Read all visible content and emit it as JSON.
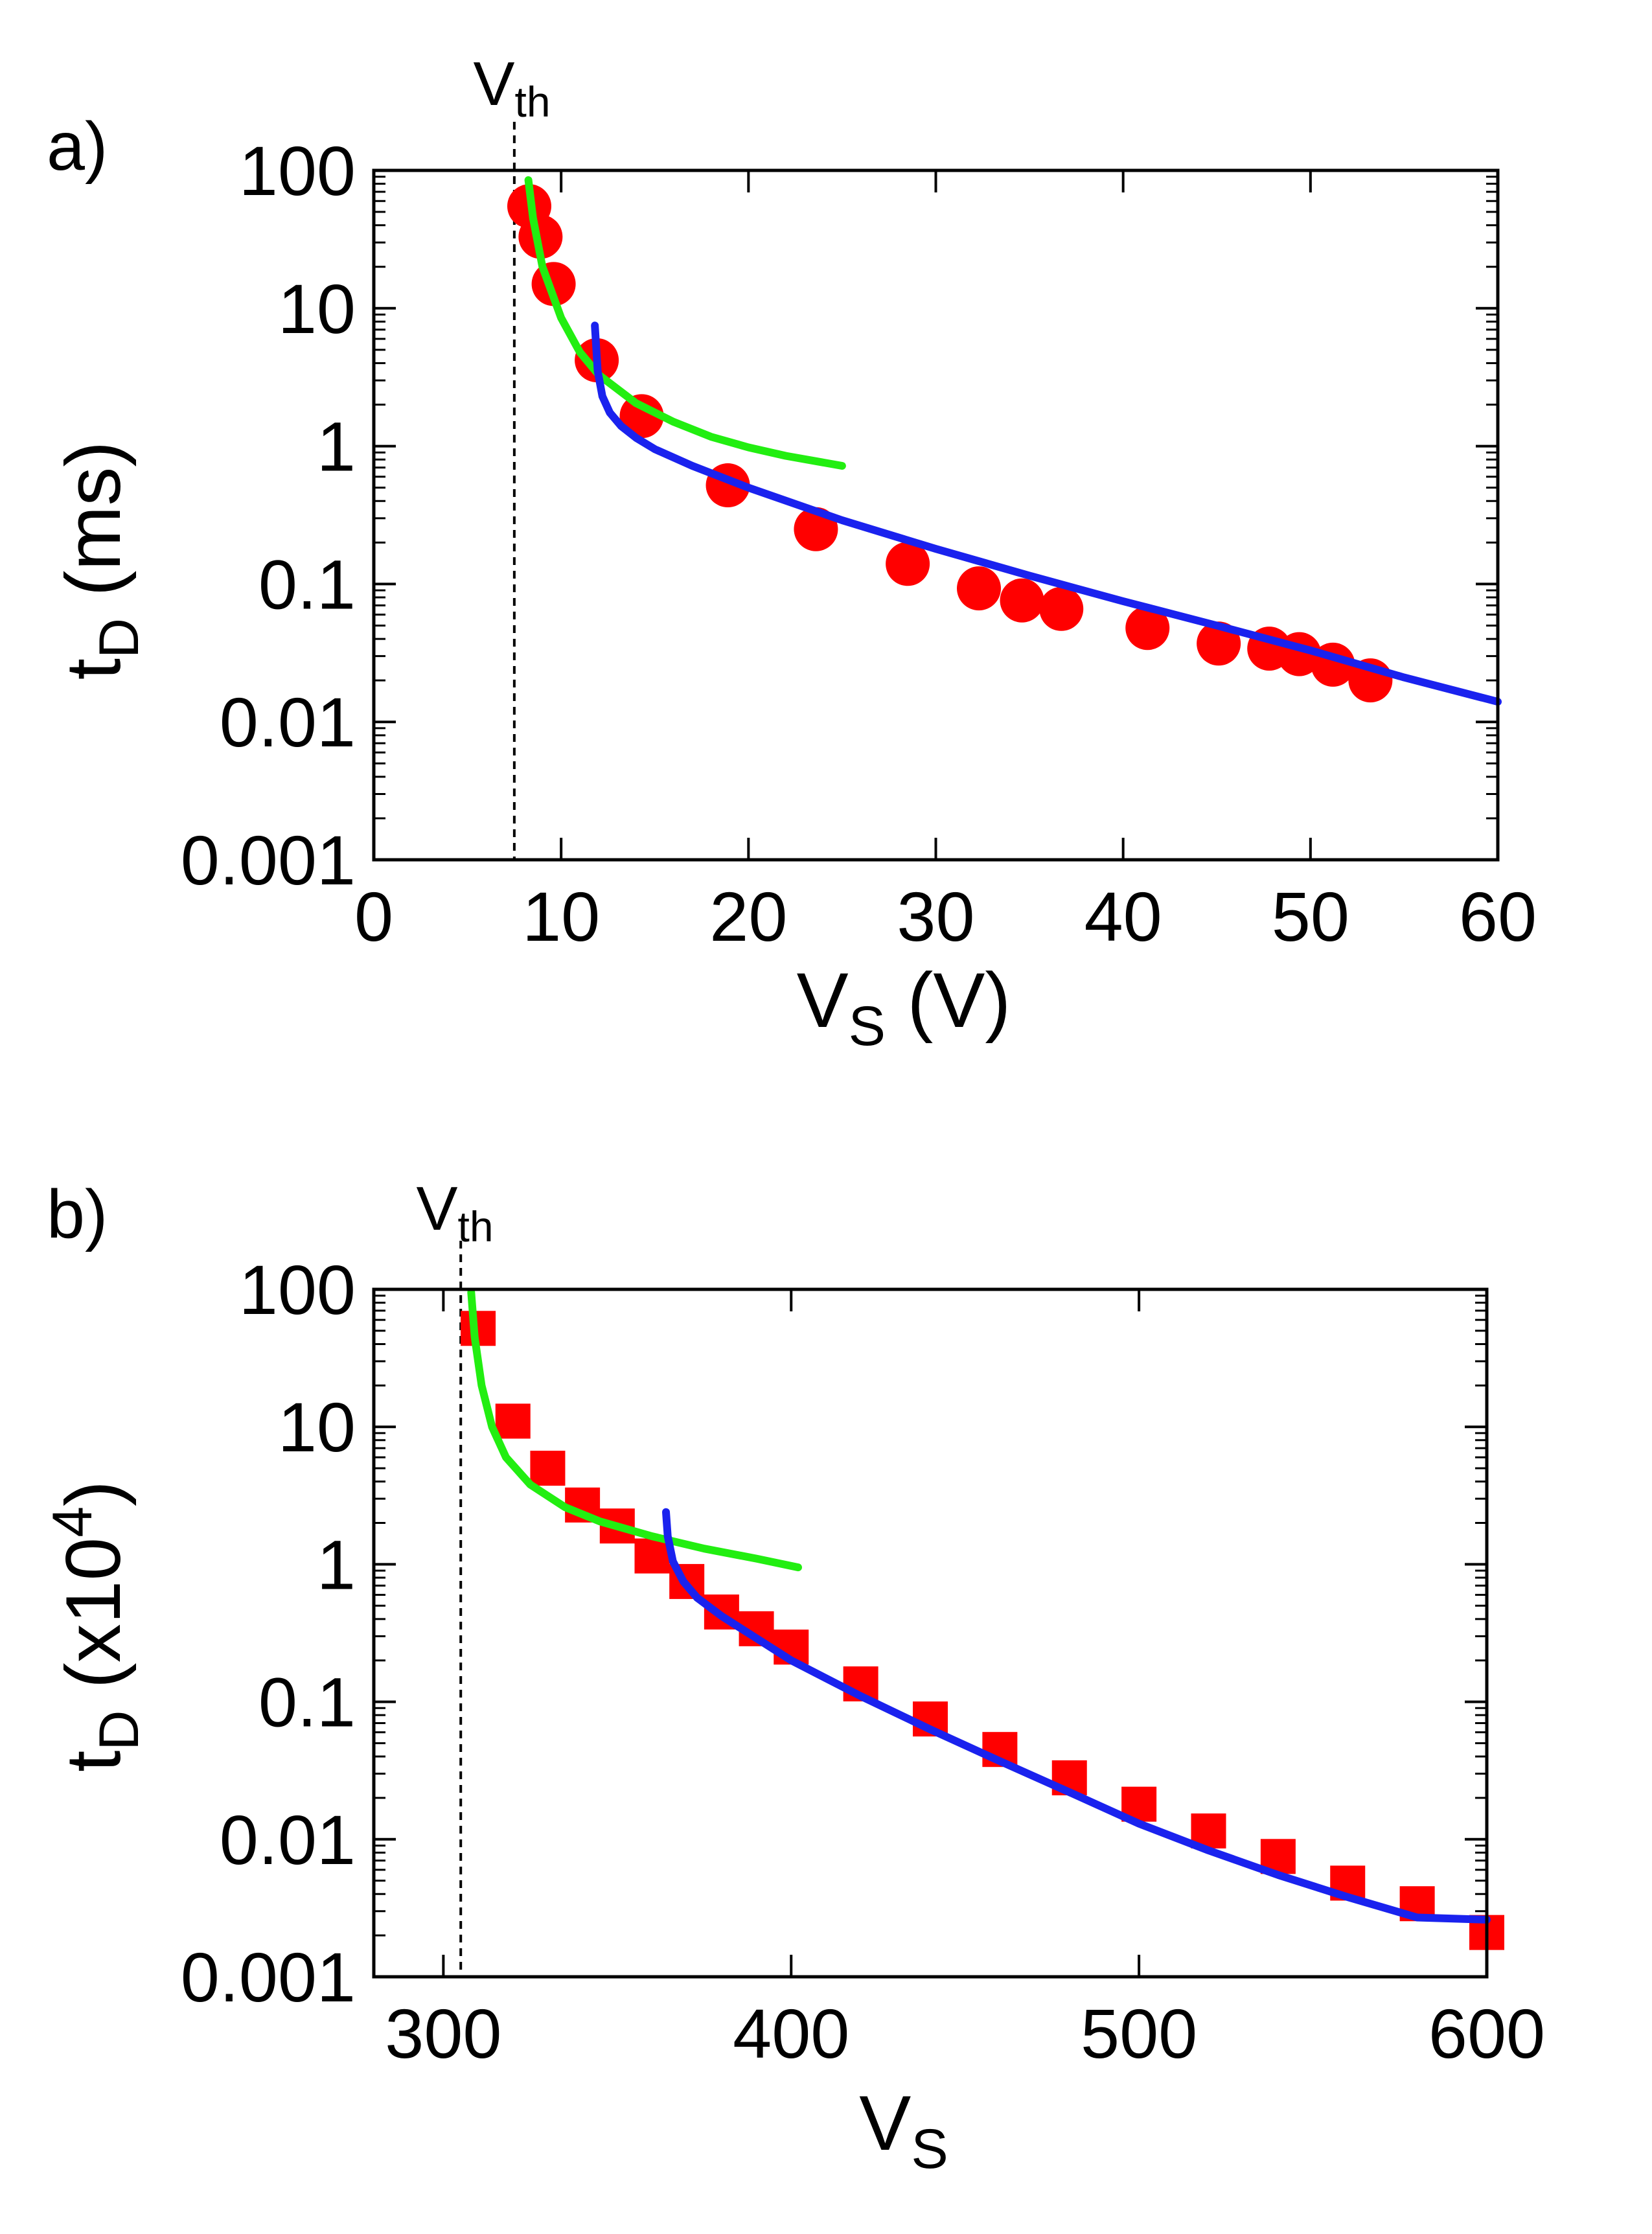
{
  "colors": {
    "points": "#ff0000",
    "green_curve": "#22ee11",
    "blue_curve": "#1a22ee",
    "axis": "#000000"
  },
  "chart_data": [
    {
      "panel_label": "a)",
      "type": "scatter",
      "marker": "circle",
      "xlabel_main": "V",
      "xlabel_sub": "S",
      "xlabel_rest": " (V)",
      "ylabel_main": "t",
      "ylabel_sub": "D",
      "ylabel_rest": " (ms)",
      "yscale": "log",
      "xlim": [
        0,
        60
      ],
      "ylim": [
        0.001,
        100
      ],
      "xticks": [
        0,
        10,
        20,
        30,
        40,
        50,
        60
      ],
      "xtick_labels": [
        "0",
        "10",
        "20",
        "30",
        "40",
        "50",
        "60"
      ],
      "yticks": [
        0.001,
        0.01,
        0.1,
        1,
        10,
        100
      ],
      "ytick_labels": [
        "0.001",
        "0.01",
        "0.1",
        "1",
        "10",
        "100"
      ],
      "vth": {
        "x": 7.5,
        "label_main": "V",
        "label_sub": "th"
      },
      "series": [
        {
          "name": "data",
          "x": [
            8.3,
            8.9,
            9.6,
            11.9,
            14.3,
            18.9,
            23.6,
            28.5,
            32.3,
            34.6,
            36.7,
            41.3,
            45.1,
            47.8,
            49.4,
            51.2,
            53.2
          ],
          "y": [
            55,
            33,
            15,
            4.2,
            1.65,
            0.52,
            0.25,
            0.14,
            0.093,
            0.076,
            0.066,
            0.048,
            0.037,
            0.034,
            0.031,
            0.026,
            0.02
          ]
        },
        {
          "name": "green fit",
          "x": [
            8.25,
            8.5,
            9,
            10,
            11,
            12,
            14,
            16,
            18,
            20,
            22,
            25
          ],
          "y": [
            85,
            45,
            20,
            8.5,
            4.8,
            3.3,
            2.05,
            1.5,
            1.17,
            0.98,
            0.85,
            0.72
          ]
        },
        {
          "name": "blue fit",
          "x": [
            11.8,
            11.95,
            12.2,
            12.6,
            13.2,
            14,
            15,
            17,
            20,
            25,
            30,
            35,
            40,
            45,
            50,
            55,
            60
          ],
          "y": [
            7.5,
            3.5,
            2.3,
            1.75,
            1.4,
            1.15,
            0.95,
            0.72,
            0.5,
            0.29,
            0.18,
            0.115,
            0.075,
            0.05,
            0.033,
            0.021,
            0.014
          ]
        }
      ]
    },
    {
      "panel_label": "b)",
      "type": "scatter",
      "marker": "square",
      "xlabel_main": "V",
      "xlabel_sub": "S",
      "xlabel_rest": "",
      "ylabel_main": "t",
      "ylabel_sub": "D",
      "ylabel_rest": " (x10",
      "ylabel_sup": "4",
      "ylabel_close": ")",
      "yscale": "log",
      "xlim": [
        280,
        600
      ],
      "ylim": [
        0.001,
        100
      ],
      "xticks": [
        300,
        400,
        500,
        600
      ],
      "xtick_labels": [
        "300",
        "400",
        "500",
        "600"
      ],
      "yticks": [
        0.001,
        0.01,
        0.1,
        1,
        10,
        100
      ],
      "ytick_labels": [
        "0.001",
        "0.01",
        "0.1",
        "1",
        "10",
        "100"
      ],
      "vth": {
        "x": 305,
        "label_main": "V",
        "label_sub": "th"
      },
      "series": [
        {
          "name": "data",
          "x": [
            310,
            320,
            330,
            340,
            350,
            360,
            370,
            380,
            390,
            400,
            420,
            440,
            460,
            480,
            500,
            520,
            540,
            560,
            580,
            600
          ],
          "y": [
            52,
            11,
            5,
            2.7,
            1.9,
            1.15,
            0.75,
            0.45,
            0.34,
            0.25,
            0.135,
            0.075,
            0.045,
            0.028,
            0.018,
            0.0115,
            0.0075,
            0.0048,
            0.0034,
            0.0021
          ]
        },
        {
          "name": "green fit",
          "x": [
            308,
            309,
            311,
            314,
            318,
            325,
            335,
            345,
            360,
            375,
            390,
            402
          ],
          "y": [
            95,
            45,
            20,
            10,
            6,
            3.8,
            2.6,
            2.05,
            1.6,
            1.3,
            1.1,
            0.95
          ]
        },
        {
          "name": "blue fit",
          "x": [
            364,
            364.5,
            366,
            369,
            373,
            380,
            390,
            400,
            420,
            440,
            460,
            480,
            500,
            520,
            540,
            560,
            580,
            600
          ],
          "y": [
            2.4,
            1.6,
            1.05,
            0.75,
            0.57,
            0.42,
            0.29,
            0.2,
            0.11,
            0.063,
            0.037,
            0.022,
            0.013,
            0.0083,
            0.0055,
            0.0038,
            0.0027,
            0.0026
          ]
        }
      ]
    }
  ]
}
